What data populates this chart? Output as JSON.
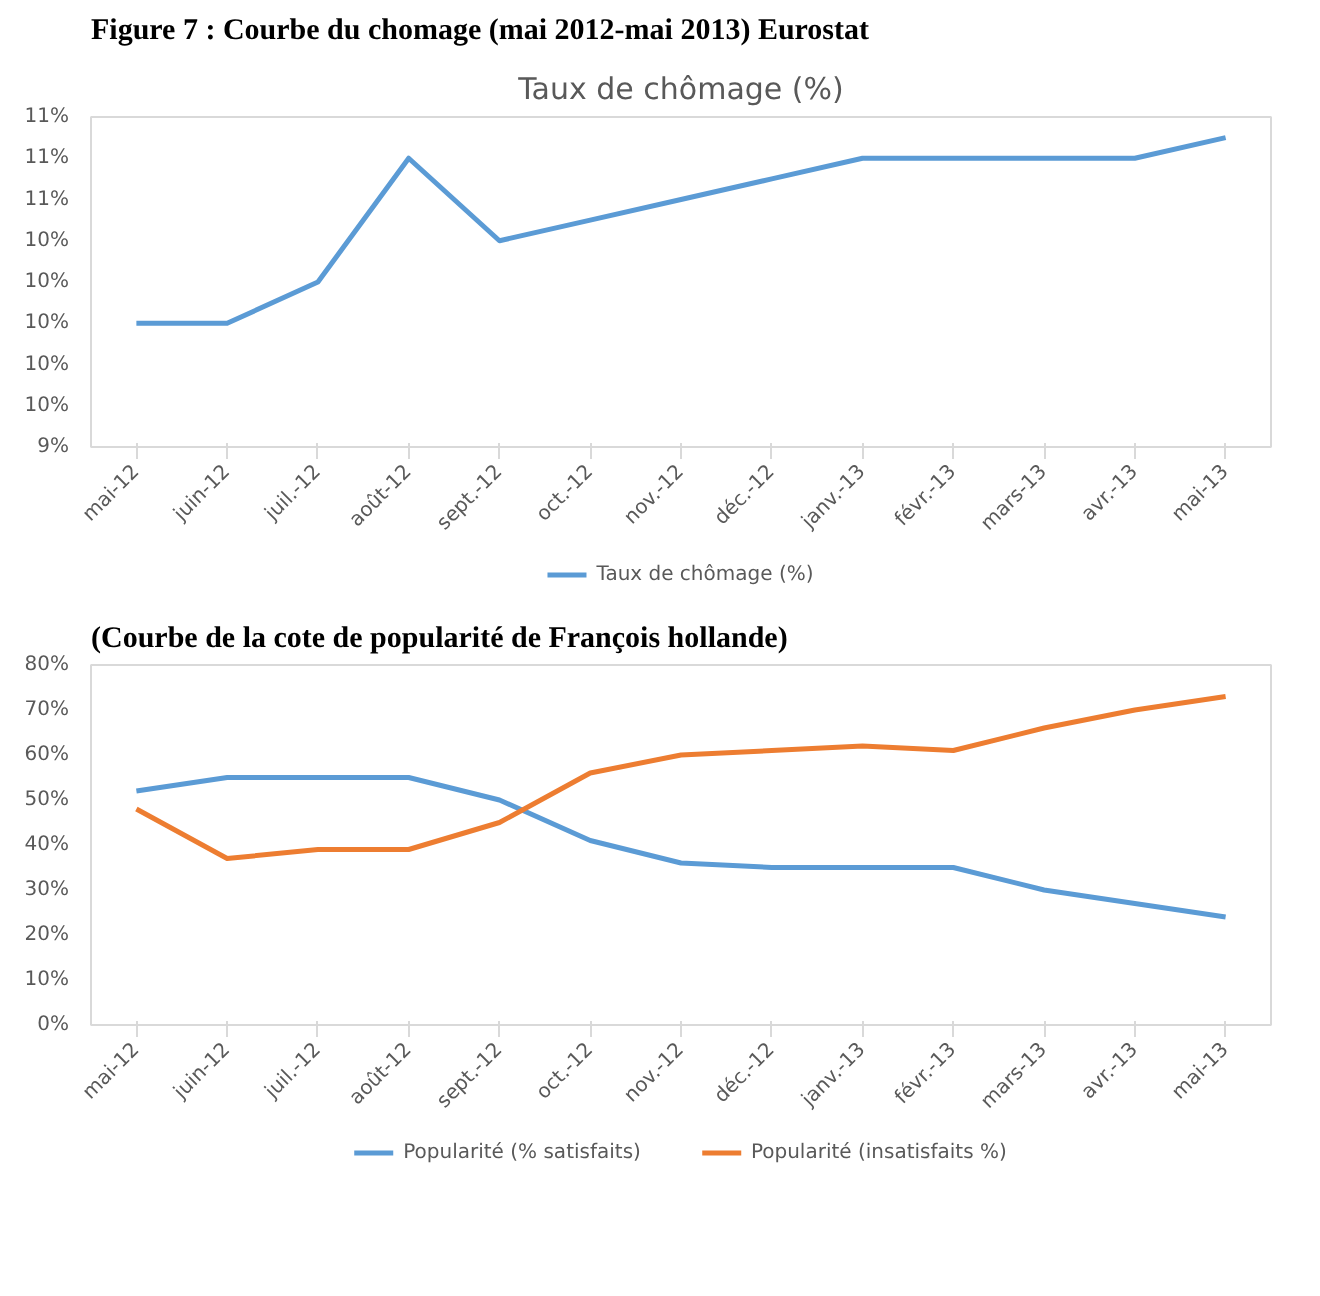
{
  "chart_data": [
    {
      "type": "line",
      "title": "Taux de chômage (%)",
      "annotations": [
        "Figure 7 : Courbe du chomage (mai 2012-mai 2013) Eurostat"
      ],
      "categories": [
        "mai-12",
        "juin-12",
        "juil.-12",
        "août-12",
        "sept.-12",
        "oct.-12",
        "nov.-12",
        "déc.-12",
        "janv.-13",
        "févr.-13",
        "mars-13",
        "avr.-13",
        "mai-13"
      ],
      "series": [
        {
          "name": "Taux de chômage (%)",
          "color": "#5b9bd5",
          "values": [
            10.0,
            10.0,
            10.2,
            10.8,
            10.4,
            10.5,
            10.6,
            10.7,
            10.8,
            10.8,
            10.8,
            10.8,
            10.9
          ]
        }
      ],
      "ylim": [
        9.4,
        11.0
      ],
      "yticks": [
        {
          "value": 9.4,
          "label": "9%"
        },
        {
          "value": 9.6,
          "label": "10%"
        },
        {
          "value": 9.8,
          "label": "10%"
        },
        {
          "value": 10.0,
          "label": "10%"
        },
        {
          "value": 10.2,
          "label": "10%"
        },
        {
          "value": 10.4,
          "label": "10%"
        },
        {
          "value": 10.6,
          "label": "11%"
        },
        {
          "value": 10.8,
          "label": "11%"
        },
        {
          "value": 11.0,
          "label": "11%"
        }
      ],
      "grid": false,
      "legend": "bottom",
      "marker": "none",
      "line_style": "solid"
    },
    {
      "type": "line",
      "annotations": [
        "(Courbe de la cote de popularité de François hollande)"
      ],
      "categories": [
        "mai-12",
        "juin-12",
        "juil.-12",
        "août-12",
        "sept.-12",
        "oct.-12",
        "nov.-12",
        "déc.-12",
        "janv.-13",
        "févr.-13",
        "mars-13",
        "avr.-13",
        "mai-13"
      ],
      "series": [
        {
          "name": "Popularité (% satisfaits)",
          "color": "#5b9bd5",
          "values": [
            52,
            55,
            55,
            55,
            50,
            41,
            36,
            35,
            35,
            35,
            30,
            27,
            24
          ]
        },
        {
          "name": "Popularité (insatisfaits %)",
          "color": "#ed7d31",
          "values": [
            48,
            37,
            39,
            39,
            45,
            56,
            60,
            61,
            62,
            61,
            66,
            70,
            73
          ]
        }
      ],
      "ylim": [
        0,
        80
      ],
      "yticks": [
        {
          "value": 0,
          "label": "0%"
        },
        {
          "value": 10,
          "label": "10%"
        },
        {
          "value": 20,
          "label": "20%"
        },
        {
          "value": 30,
          "label": "30%"
        },
        {
          "value": 40,
          "label": "40%"
        },
        {
          "value": 50,
          "label": "50%"
        },
        {
          "value": 60,
          "label": "60%"
        },
        {
          "value": 70,
          "label": "70%"
        },
        {
          "value": 80,
          "label": "80%"
        }
      ],
      "grid": false,
      "legend": "bottom",
      "marker": "none",
      "line_style": "solid"
    }
  ]
}
